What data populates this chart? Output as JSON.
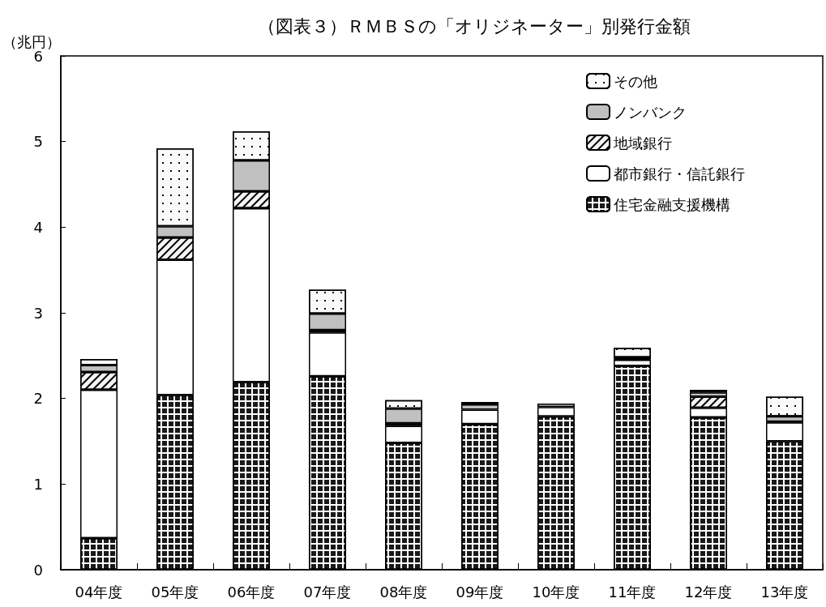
{
  "chart_data": {
    "type": "bar",
    "title": "（図表３）ＲＭＢＳの「オリジネーター」別発行金額",
    "ylabel": "（兆円）",
    "categories": [
      "04年度",
      "05年度",
      "06年度",
      "07年度",
      "08年度",
      "09年度",
      "10年度",
      "11年度",
      "12年度",
      "13年度"
    ],
    "stacked": true,
    "ylim": [
      0,
      6
    ],
    "yticks": [
      0,
      1,
      2,
      3,
      4,
      5,
      6
    ],
    "grid": false,
    "legend": "top right",
    "series": [
      {
        "name": "住宅金融支援機構",
        "color": "#ffffff",
        "values": [
          0.37,
          2.04,
          2.19,
          2.26,
          1.48,
          1.7,
          1.79,
          2.38,
          1.78,
          1.5
        ]
      },
      {
        "name": "都市銀行・信託銀行",
        "color": "#ffffff",
        "values": [
          1.73,
          1.58,
          2.03,
          0.51,
          0.2,
          0.17,
          0.11,
          0.07,
          0.11,
          0.22
        ]
      },
      {
        "name": "地域銀行",
        "color": "#f4f4f4",
        "values": [
          0.21,
          0.26,
          0.2,
          0.03,
          0.03,
          null,
          null,
          0.01,
          0.13,
          0.01
        ]
      },
      {
        "name": "ノンバンク",
        "color": "#c0c0c0",
        "values": [
          0.08,
          0.13,
          0.36,
          0.19,
          0.17,
          0.06,
          0.04,
          0.02,
          0.05,
          0.06
        ]
      },
      {
        "name": "その他",
        "color": "#fafafa",
        "values": [
          0.07,
          0.91,
          0.34,
          0.28,
          0.1,
          0.03,
          0.0,
          0.11,
          0.03,
          0.23
        ]
      }
    ]
  }
}
